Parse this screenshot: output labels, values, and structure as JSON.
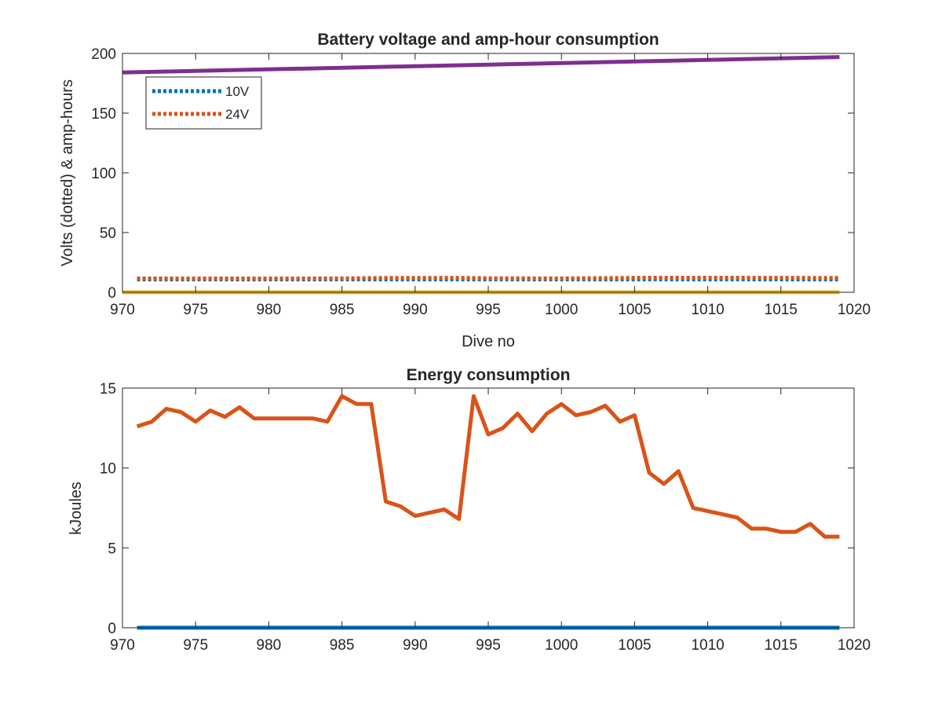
{
  "chart_data": [
    {
      "type": "line",
      "title": "Battery voltage and amp-hour consumption",
      "xlabel": "Dive no",
      "ylabel": "Volts (dotted) & amp-hours",
      "xlim": [
        970,
        1020
      ],
      "ylim": [
        0,
        200
      ],
      "xticks": [
        970,
        975,
        980,
        985,
        990,
        995,
        1000,
        1005,
        1010,
        1015,
        1020
      ],
      "yticks": [
        0,
        50,
        100,
        150,
        200
      ],
      "grid": false,
      "legend_position": "top-left",
      "series": [
        {
          "name": "10V",
          "color": "#0072BD",
          "style": "dotted",
          "x": [
            971,
            1019
          ],
          "y": [
            10.8,
            10.8
          ]
        },
        {
          "name": "24V",
          "color": "#D95319",
          "style": "dotted",
          "x": [
            971,
            975,
            980,
            985,
            988,
            990,
            993,
            995,
            1000,
            1004,
            1006,
            1010,
            1015,
            1019
          ],
          "y": [
            11.5,
            11.5,
            11.5,
            11.6,
            12.0,
            12.0,
            12.1,
            11.7,
            11.6,
            12.0,
            12.2,
            12.2,
            12.1,
            12.0
          ]
        },
        {
          "color": "#EDB120",
          "style": "solid",
          "x": [
            970,
            1019
          ],
          "y": [
            0,
            0
          ]
        },
        {
          "color": "#7E2F8E",
          "style": "solid",
          "x": [
            970,
            1019
          ],
          "y": [
            184,
            197
          ]
        }
      ]
    },
    {
      "type": "line",
      "title": "Energy consumption",
      "xlabel": "",
      "ylabel": "kJoules",
      "xlim": [
        970,
        1020
      ],
      "ylim": [
        0,
        15
      ],
      "xticks": [
        970,
        975,
        980,
        985,
        990,
        995,
        1000,
        1005,
        1010,
        1015,
        1020
      ],
      "yticks": [
        0,
        5,
        10,
        15
      ],
      "grid": false,
      "series": [
        {
          "color": "#0072BD",
          "style": "solid",
          "x": [
            971,
            1019
          ],
          "y": [
            0,
            0
          ]
        },
        {
          "color": "#D95319",
          "style": "solid",
          "x": [
            971,
            972,
            973,
            974,
            975,
            976,
            977,
            978,
            979,
            980,
            981,
            982,
            983,
            984,
            985,
            986,
            987,
            988,
            989,
            990,
            991,
            992,
            993,
            994,
            995,
            996,
            997,
            998,
            999,
            1000,
            1001,
            1002,
            1003,
            1004,
            1005,
            1006,
            1007,
            1008,
            1009,
            1010,
            1011,
            1012,
            1013,
            1014,
            1015,
            1016,
            1017,
            1018,
            1019
          ],
          "y": [
            12.6,
            12.9,
            13.7,
            13.5,
            12.9,
            13.6,
            13.2,
            13.8,
            13.1,
            13.1,
            13.1,
            13.1,
            13.1,
            12.9,
            14.5,
            14.0,
            14.0,
            7.9,
            7.6,
            7.0,
            7.2,
            7.4,
            6.8,
            14.5,
            12.1,
            12.5,
            13.4,
            12.3,
            13.4,
            14.0,
            13.3,
            13.5,
            13.9,
            12.9,
            13.3,
            9.7,
            9.0,
            9.8,
            7.5,
            7.3,
            7.1,
            6.9,
            6.2,
            6.2,
            6.0,
            6.0,
            6.5,
            5.7,
            5.7
          ]
        }
      ]
    }
  ]
}
